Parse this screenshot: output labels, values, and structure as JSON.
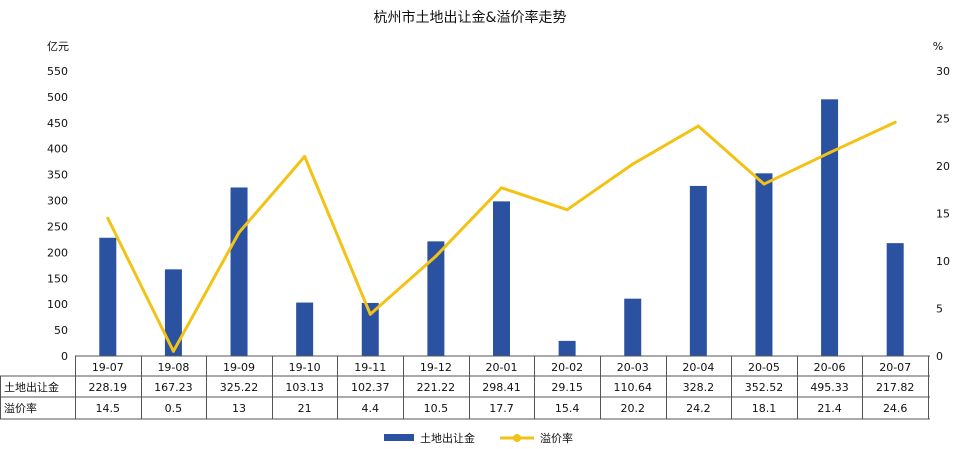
{
  "chart_data": {
    "type": "bar",
    "title": "杭州市土地出让金&溢价率走势",
    "left_unit": "亿元",
    "right_unit": "%",
    "categories": [
      "19-07",
      "19-08",
      "19-09",
      "19-10",
      "19-11",
      "19-12",
      "20-01",
      "20-02",
      "20-03",
      "20-04",
      "20-05",
      "20-06",
      "20-07"
    ],
    "left_axis": {
      "min": 0,
      "max": 550,
      "step": 50
    },
    "right_axis": {
      "min": 0,
      "max": 30,
      "step": 5
    },
    "series": [
      {
        "name": "土地出让金",
        "type": "bar",
        "axis": "left",
        "color": "#2b52a0",
        "values": [
          228.19,
          167.23,
          325.22,
          103.13,
          102.37,
          221.22,
          298.41,
          29.15,
          110.64,
          328.2,
          352.52,
          495.33,
          217.82
        ],
        "labels": [
          "228.19",
          "167.23",
          "325.22",
          "103.13",
          "102.37",
          "221.22",
          "298.41",
          "29.15",
          "110.64",
          "328.2",
          "352.52",
          "495.33",
          "217.82"
        ]
      },
      {
        "name": "溢价率",
        "type": "line",
        "axis": "right",
        "color": "#f2c314",
        "values": [
          14.5,
          0.5,
          13,
          21,
          4.4,
          10.5,
          17.7,
          15.4,
          20.2,
          24.2,
          18.1,
          21.4,
          24.6
        ],
        "labels": [
          "14.5",
          "0.5",
          "13",
          "21",
          "4.4",
          "10.5",
          "17.7",
          "15.4",
          "20.2",
          "24.2",
          "18.1",
          "21.4",
          "24.6"
        ]
      }
    ],
    "grid": false,
    "legend": "bottom-center",
    "data_table": true
  }
}
